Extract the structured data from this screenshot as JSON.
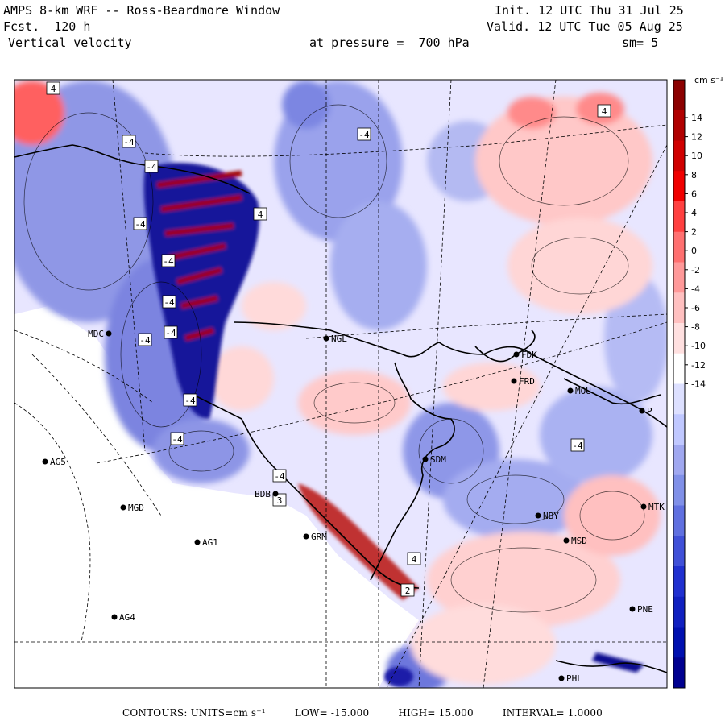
{
  "header": {
    "title": "AMPS 8-km WRF -- Ross-Beardmore Window",
    "init": "Init. 12 UTC Thu 31 Jul 25",
    "fcst": "Fcst.  120 h",
    "valid": "Valid. 12 UTC Tue 05 Aug 25",
    "field": "Vertical velocity",
    "level": "at pressure =  700 hPa",
    "smooth": "sm= 5"
  },
  "colorbar": {
    "units": "cm s⁻¹",
    "ticks": [
      "14",
      "12",
      "10",
      "8",
      "6",
      "4",
      "2",
      "0",
      "-2",
      "-4",
      "-6",
      "-8",
      "-10",
      "-12",
      "-14"
    ],
    "colors_top_to_bottom": [
      "#8b0000",
      "#b00000",
      "#d00000",
      "#f00000",
      "#ff4040",
      "#ff7070",
      "#ff9999",
      "#ffc0c0",
      "#ffe0e0",
      "#ffffff",
      "#dde0ff",
      "#c0c8ff",
      "#a0a8f0",
      "#8090e8",
      "#6070e0",
      "#4050d8",
      "#2030d0",
      "#1020c0",
      "#0010b0",
      "#000090"
    ]
  },
  "stations": [
    {
      "id": "NGL"
    },
    {
      "id": "FDK"
    },
    {
      "id": "FRD"
    },
    {
      "id": "MOU"
    },
    {
      "id": "MDC"
    },
    {
      "id": "SDM"
    },
    {
      "id": "AG5"
    },
    {
      "id": "MGD"
    },
    {
      "id": "AG1"
    },
    {
      "id": "AG4"
    },
    {
      "id": "NBY"
    },
    {
      "id": "MTK"
    },
    {
      "id": "BDB"
    },
    {
      "id": "GRM"
    },
    {
      "id": "MSD"
    },
    {
      "id": "PNE"
    },
    {
      "id": "PHL"
    },
    {
      "id": "P"
    }
  ],
  "contour_labels": [
    "4",
    "-4",
    "-4",
    "-4",
    "4",
    "-4",
    "4",
    "-4",
    "-4",
    "-4",
    "-4",
    "-4",
    "-4",
    "3",
    "-4",
    "-4",
    "2",
    "4"
  ],
  "footer": {
    "contours": "CONTOURS:  UNITS=cm s⁻¹",
    "low": "LOW= -15.000",
    "high": "HIGH=  15.000",
    "interval": "INTERVAL=   1.0000"
  }
}
